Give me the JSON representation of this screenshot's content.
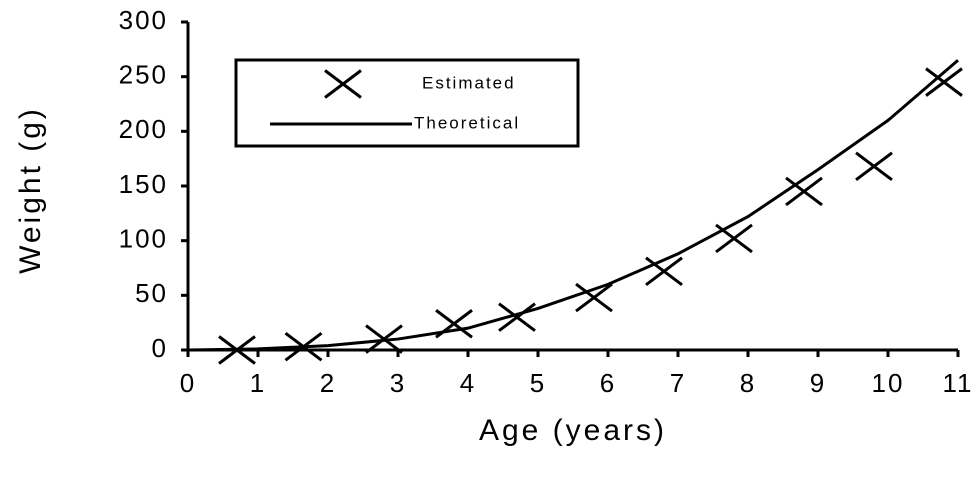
{
  "chart_data": {
    "type": "line",
    "x_label": "Age (years)",
    "y_label": "Weight (g)",
    "xlim": [
      0,
      11
    ],
    "xticks": [
      0,
      1,
      2,
      3,
      4,
      5,
      6,
      7,
      8,
      9,
      10,
      11
    ],
    "ylim": [
      0,
      300
    ],
    "yticks": [
      0,
      50,
      100,
      150,
      200,
      250,
      300
    ],
    "legend": "upper left",
    "series": [
      {
        "name": "Estimated",
        "style": "marker",
        "color": "#000000",
        "x": [
          0.7,
          1.65,
          2.8,
          3.8,
          4.7,
          5.8,
          6.8,
          7.8,
          8.8,
          9.8,
          10.8
        ],
        "values": [
          0,
          3,
          10,
          24,
          30,
          48,
          72,
          102,
          145,
          168,
          245
        ]
      },
      {
        "name": "Theoretical",
        "style": "line",
        "color": "#000000",
        "x": [
          0,
          1,
          2,
          3,
          4,
          5,
          6,
          7,
          8,
          9,
          10,
          11
        ],
        "values": [
          0,
          1,
          4,
          10,
          20,
          38,
          60,
          88,
          122,
          165,
          210,
          265
        ]
      }
    ]
  }
}
